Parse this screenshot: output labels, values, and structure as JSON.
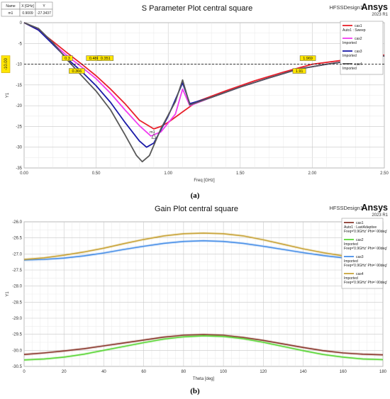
{
  "chart_data": [
    {
      "type": "line",
      "title": "S Parameter Plot central square",
      "design_name": "HFSSDesign1",
      "brand": "Ansys",
      "version": "2023 R1",
      "xlabel": "Freq [GHz]",
      "ylabel": "Y1",
      "xlim": [
        0,
        2.5
      ],
      "ylim": [
        -35,
        0
      ],
      "x_ticks": [
        "0.00",
        "0.50",
        "1.00",
        "1.50",
        "2.00",
        "2.50"
      ],
      "y_ticks": [
        "0",
        "-5",
        "-10",
        "-15",
        "-20",
        "-25",
        "-30",
        "-35"
      ],
      "grid": true,
      "legend_placement": "top-right",
      "reference_line": {
        "y": -10,
        "label": "-10.00"
      },
      "marker_table": {
        "headers": [
          "Name",
          "X [GHz]",
          "Y"
        ],
        "rows": [
          [
            "m1",
            "0.9009",
            "-27.3437"
          ]
        ]
      },
      "marker_label": "m1",
      "crossing_labels": [
        "0.3",
        "0.486",
        "0.351",
        "0.366",
        "1.969",
        "1.91"
      ],
      "series": [
        {
          "name": "cas1",
          "sub": "Auto1 : Sweep",
          "color": "#e8202a",
          "x": [
            0,
            0.1,
            0.2,
            0.3,
            0.4,
            0.5,
            0.6,
            0.7,
            0.8,
            0.9,
            0.95,
            1.0,
            1.1,
            1.2,
            1.4,
            1.6,
            1.8,
            2.0,
            2.2,
            2.5
          ],
          "y": [
            0,
            -1.8,
            -4.5,
            -7.3,
            -10.0,
            -12.8,
            -16.0,
            -19.5,
            -23.5,
            -25.6,
            -25.0,
            -24.0,
            -21.5,
            -19.0,
            -16.4,
            -14.0,
            -11.9,
            -10.0,
            -9.1,
            -7.8
          ]
        },
        {
          "name": "cas2",
          "sub": "Imported",
          "color": "#f03cf0",
          "x": [
            0,
            0.1,
            0.2,
            0.3,
            0.4,
            0.5,
            0.6,
            0.7,
            0.8,
            0.88,
            0.95,
            1.05,
            1.1,
            1.15,
            1.3,
            1.5,
            1.7,
            1.9,
            2.1,
            2.5
          ],
          "y": [
            0,
            -1.5,
            -5.0,
            -8.0,
            -10.7,
            -13.5,
            -17.0,
            -21.0,
            -24.8,
            -27.3,
            -26.3,
            -22.0,
            -16.0,
            -20.0,
            -18.0,
            -15.5,
            -13.3,
            -11.2,
            -10.0,
            -8.0
          ]
        },
        {
          "name": "cas3",
          "sub": "Imported",
          "color": "#1a1aa8",
          "x": [
            0,
            0.1,
            0.2,
            0.3,
            0.4,
            0.5,
            0.6,
            0.7,
            0.8,
            0.85,
            0.9,
            1.0,
            1.05,
            1.1,
            1.15,
            1.3,
            1.5,
            1.7,
            1.9,
            2.1,
            2.5
          ],
          "y": [
            0,
            -1.8,
            -5.2,
            -8.7,
            -11.8,
            -15.2,
            -19.2,
            -24.0,
            -28.5,
            -30.0,
            -29.0,
            -22.5,
            -18.5,
            -14.5,
            -19.5,
            -18.0,
            -15.5,
            -13.3,
            -11.2,
            -10.0,
            -8.0
          ]
        },
        {
          "name": "cas4",
          "sub": "Imported",
          "color": "#585858",
          "x": [
            0,
            0.1,
            0.2,
            0.3,
            0.4,
            0.5,
            0.6,
            0.7,
            0.78,
            0.82,
            0.87,
            0.95,
            1.05,
            1.1,
            1.15,
            1.3,
            1.5,
            1.7,
            1.9,
            2.1,
            2.5
          ],
          "y": [
            0,
            -1.4,
            -4.8,
            -9.0,
            -12.8,
            -16.5,
            -21.0,
            -27.0,
            -32.0,
            -33.5,
            -32.0,
            -25.5,
            -19.0,
            -13.8,
            -19.8,
            -18.0,
            -15.5,
            -13.3,
            -11.2,
            -10.0,
            -8.0
          ]
        }
      ],
      "caption": "(a)"
    },
    {
      "type": "line",
      "title": "Gain Plot central square",
      "design_name": "HFSSDesign1",
      "brand": "Ansys",
      "version": "2023 R1",
      "xlabel": "Theta [deg]",
      "ylabel": "Y1",
      "xlim": [
        0,
        180
      ],
      "ylim": [
        -30.5,
        -26.0
      ],
      "x_ticks": [
        "0",
        "20",
        "40",
        "60",
        "80",
        "100",
        "120",
        "140",
        "160",
        "180"
      ],
      "y_ticks": [
        "-26.0",
        "-26.5",
        "-27.0",
        "-27.5",
        "-28.0",
        "-28.5",
        "-29.0",
        "-29.5",
        "-30.0",
        "-30.5"
      ],
      "grid": true,
      "legend_placement": "top-right",
      "series": [
        {
          "name": "cas1",
          "sub": "Auto1 : LastAdaptive",
          "freq": "Freq='0.9GHz' Phi='-90deg'",
          "color": "#8b3a2f",
          "x": [
            0,
            10,
            20,
            30,
            40,
            50,
            60,
            70,
            80,
            90,
            100,
            110,
            120,
            130,
            140,
            150,
            160,
            170,
            180
          ],
          "y": [
            -30.13,
            -30.08,
            -30.02,
            -29.95,
            -29.86,
            -29.77,
            -29.68,
            -29.59,
            -29.53,
            -29.51,
            -29.53,
            -29.6,
            -29.69,
            -29.8,
            -29.91,
            -30.01,
            -30.08,
            -30.12,
            -30.14
          ]
        },
        {
          "name": "cas2",
          "sub": "Imported",
          "freq": "Freq='0.9GHz' Phi='-90deg'",
          "color": "#5cd639",
          "x": [
            0,
            10,
            20,
            30,
            40,
            50,
            60,
            70,
            80,
            90,
            100,
            110,
            120,
            130,
            140,
            150,
            160,
            170,
            180
          ],
          "y": [
            -30.3,
            -30.27,
            -30.21,
            -30.12,
            -30.0,
            -29.88,
            -29.76,
            -29.65,
            -29.58,
            -29.55,
            -29.57,
            -29.64,
            -29.75,
            -29.88,
            -30.01,
            -30.13,
            -30.21,
            -30.27,
            -30.29
          ]
        },
        {
          "name": "cas3",
          "sub": "Imported",
          "freq": "Freq='0.9GHz' Phi='-90deg'",
          "color": "#4a90e8",
          "x": [
            0,
            10,
            20,
            30,
            40,
            50,
            60,
            70,
            80,
            90,
            100,
            110,
            120,
            130,
            140,
            150,
            160,
            170,
            180
          ],
          "y": [
            -27.19,
            -27.17,
            -27.13,
            -27.06,
            -26.97,
            -26.86,
            -26.76,
            -26.67,
            -26.61,
            -26.59,
            -26.61,
            -26.67,
            -26.76,
            -26.86,
            -26.96,
            -27.05,
            -27.12,
            -27.17,
            -27.19
          ]
        },
        {
          "name": "cas4",
          "sub": "Imported",
          "freq": "Freq='0.9GHz' Phi='-90deg'",
          "color": "#c9a43a",
          "x": [
            0,
            10,
            20,
            30,
            40,
            50,
            60,
            70,
            80,
            90,
            100,
            110,
            120,
            130,
            140,
            150,
            160,
            170,
            180
          ],
          "y": [
            -27.17,
            -27.12,
            -27.04,
            -26.94,
            -26.82,
            -26.68,
            -26.55,
            -26.44,
            -26.37,
            -26.35,
            -26.37,
            -26.44,
            -26.56,
            -26.7,
            -26.84,
            -26.96,
            -27.06,
            -27.12,
            -27.15
          ]
        }
      ],
      "caption": "(b)"
    }
  ]
}
